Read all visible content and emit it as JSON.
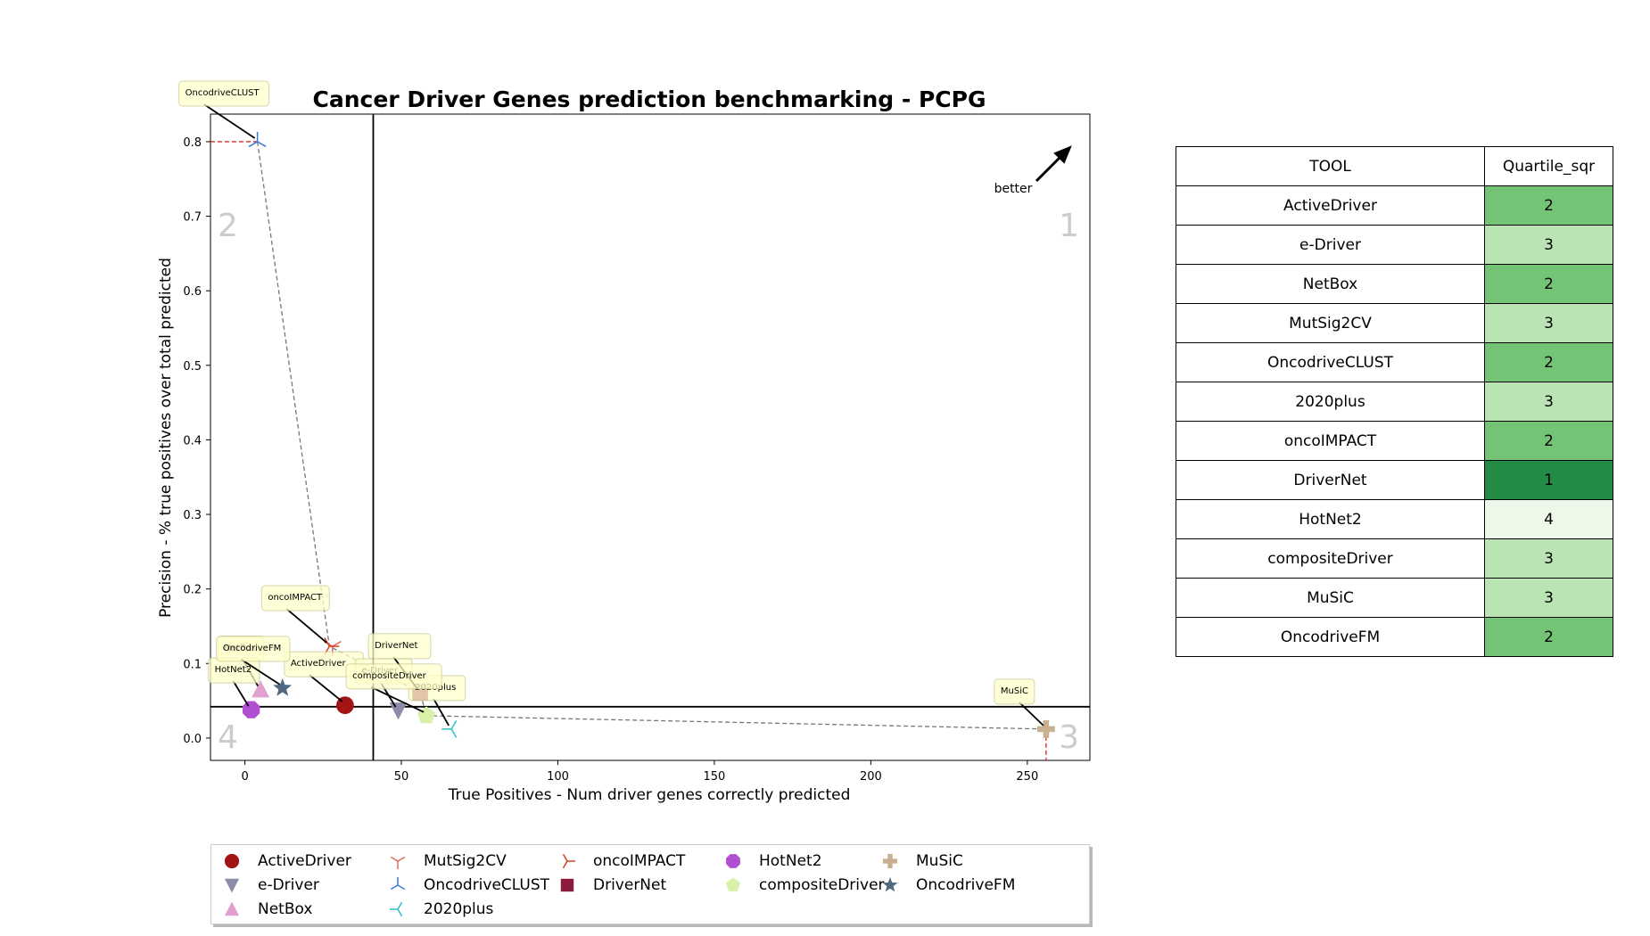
{
  "chart_data": {
    "type": "scatter",
    "title": "Cancer Driver Genes prediction benchmarking - PCPG",
    "xlabel": "True Positives - Num driver genes correctly predicted",
    "ylabel": "Precision - % true positives over total predicted",
    "xlim": [
      -11,
      270
    ],
    "ylim": [
      -0.03,
      0.837
    ],
    "x_ticks": [
      0,
      50,
      100,
      150,
      200,
      250
    ],
    "y_ticks": [
      0.0,
      0.1,
      0.2,
      0.3,
      0.4,
      0.5,
      0.6,
      0.7,
      0.8
    ],
    "quadrant_lines": {
      "x": 41,
      "y": 0.042
    },
    "quadrant_labels": [
      "1",
      "2",
      "3",
      "4"
    ],
    "better_label": "better",
    "grid": false,
    "legend_position": "below",
    "series": [
      {
        "name": "ActiveDriver",
        "x": 32,
        "y": 0.044,
        "marker": "circle",
        "color": "#a31515"
      },
      {
        "name": "e-Driver",
        "x": 49,
        "y": 0.037,
        "marker": "triangle-down",
        "color": "#8c8ca8"
      },
      {
        "name": "NetBox",
        "x": 5,
        "y": 0.065,
        "marker": "triangle-up",
        "color": "#e0a0d0"
      },
      {
        "name": "MutSig2CV",
        "x": 28,
        "y": 0.123,
        "marker": "tri-down",
        "color": "#e06a5a"
      },
      {
        "name": "OncodriveCLUST",
        "x": 4,
        "y": 0.8,
        "marker": "tri-up",
        "color": "#3a7ad8"
      },
      {
        "name": "2020plus",
        "x": 66,
        "y": 0.012,
        "marker": "tri-left",
        "color": "#30c0c8"
      },
      {
        "name": "oncoIMPACT",
        "x": 27,
        "y": 0.123,
        "marker": "tri-right",
        "color": "#d84020"
      },
      {
        "name": "DriverNet",
        "x": 56,
        "y": 0.061,
        "marker": "square",
        "color": "#8c1c3c"
      },
      {
        "name": "HotNet2",
        "x": 2,
        "y": 0.038,
        "marker": "octagon",
        "color": "#b050d0"
      },
      {
        "name": "compositeDriver",
        "x": 58,
        "y": 0.03,
        "marker": "pentagon",
        "color": "#d8f0a8"
      },
      {
        "name": "MuSiC",
        "x": 256,
        "y": 0.012,
        "marker": "plus",
        "color": "#c8b090"
      },
      {
        "name": "OncodriveFM",
        "x": 12,
        "y": 0.067,
        "marker": "star",
        "color": "#506880"
      }
    ]
  },
  "table": {
    "headers": [
      "TOOL",
      "Quartile_sqr"
    ],
    "rows": [
      {
        "tool": "ActiveDriver",
        "quartile": "2",
        "color": "#74c476"
      },
      {
        "tool": "e-Driver",
        "quartile": "3",
        "color": "#bae4b3"
      },
      {
        "tool": "NetBox",
        "quartile": "2",
        "color": "#74c476"
      },
      {
        "tool": "MutSig2CV",
        "quartile": "3",
        "color": "#bae4b3"
      },
      {
        "tool": "OncodriveCLUST",
        "quartile": "2",
        "color": "#74c476"
      },
      {
        "tool": "2020plus",
        "quartile": "3",
        "color": "#bae4b3"
      },
      {
        "tool": "oncoIMPACT",
        "quartile": "2",
        "color": "#74c476"
      },
      {
        "tool": "DriverNet",
        "quartile": "1",
        "color": "#238b45"
      },
      {
        "tool": "HotNet2",
        "quartile": "4",
        "color": "#edf8e9"
      },
      {
        "tool": "compositeDriver",
        "quartile": "3",
        "color": "#bae4b3"
      },
      {
        "tool": "MuSiC",
        "quartile": "3",
        "color": "#bae4b3"
      },
      {
        "tool": "OncodriveFM",
        "quartile": "2",
        "color": "#74c476"
      }
    ]
  }
}
